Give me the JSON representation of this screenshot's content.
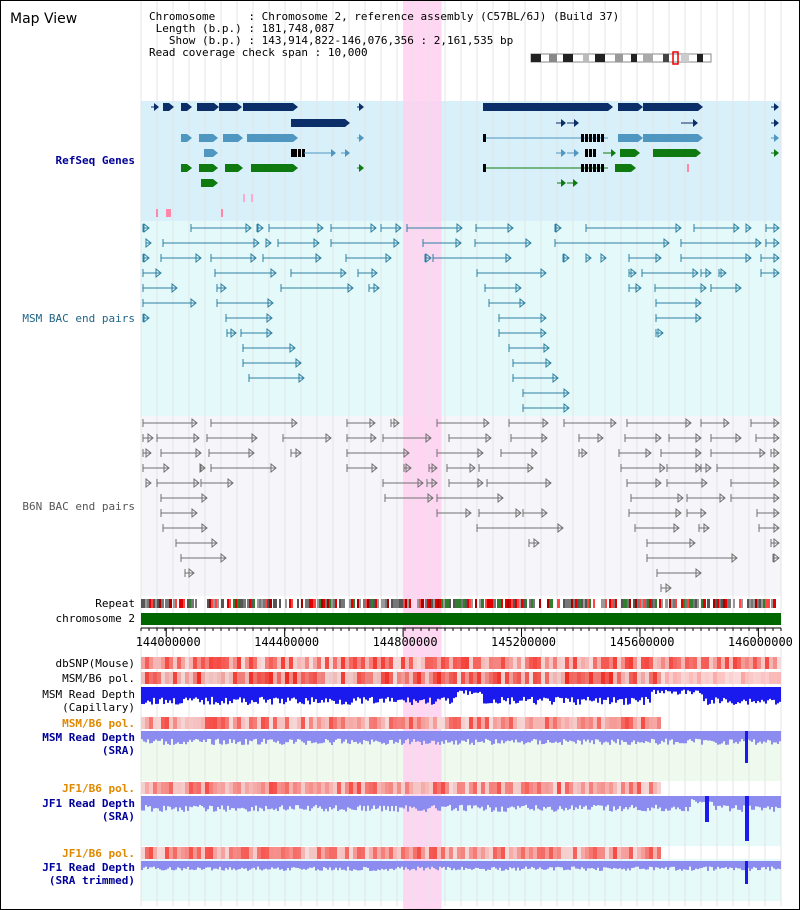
{
  "view": {
    "title": "Map View"
  },
  "info": {
    "chromosome_label": "Chromosome",
    "chromosome_value": "Chromosome 2, reference assembly (C57BL/6J) (Build 37)",
    "length_label": "Length (b.p.)",
    "length_value": "181,748,087",
    "show_label": "Show (b.p.)",
    "show_value": "143,914,822-146,076,356 : 2,161,535 bp",
    "coverage_label": "Read coverage check span",
    "coverage_value": "10,000"
  },
  "tracks": {
    "refseq": "RefSeq Genes",
    "msm_bac": "MSM BAC end pairs",
    "b6n_bac": "B6N BAC end pairs",
    "repeat": "Repeat",
    "chromosome": "chromosome 2",
    "dbsnp": "dbSNP(Mouse)",
    "msm_b6_pol": "MSM/B6 pol.",
    "msm_depth_cap_1": "MSM Read Depth",
    "msm_depth_cap_2": "(Capillary)",
    "msm_b6_pol_sra": "MSM/B6 pol.",
    "msm_depth_sra_1": "MSM Read Depth",
    "msm_depth_sra_2": "(SRA)",
    "jf1_b6_pol": "JF1/B6 pol.",
    "jf1_depth_1": "JF1 Read Depth",
    "jf1_depth_2": "(SRA)",
    "jf1_b6_pol_trim": "JF1/B6 pol.",
    "jf1_trim_1": "JF1 Read Depth",
    "jf1_trim_2": "(SRA trimmed)"
  },
  "axis": {
    "ticks": [
      "144000000",
      "144400000",
      "144800000",
      "145200000",
      "145600000",
      "146000000"
    ],
    "tick_values": [
      144000000,
      144400000,
      144800000,
      145200000,
      145600000,
      146000000
    ],
    "range": [
      143914822,
      146076356
    ]
  },
  "highlight": {
    "start": 144800000,
    "end": 144930000,
    "color": "#ffd0f0"
  },
  "colors": {
    "refseq_bg": "#d8f0fa",
    "bac_bg": "#e4fafa",
    "b6n_bg": "#f6f6fa",
    "refseq_dark": "#0b2e68",
    "refseq_mid": "#4f97c0",
    "refseq_green": "#0f7a0f",
    "msm_bac": "#2c7fa2",
    "b6n_bac": "#707070",
    "chromosome_bar": "#006600",
    "depth_cap": "#1a1aee",
    "depth_sra": "#8c8cf0",
    "pol_red": "#e83030"
  }
}
